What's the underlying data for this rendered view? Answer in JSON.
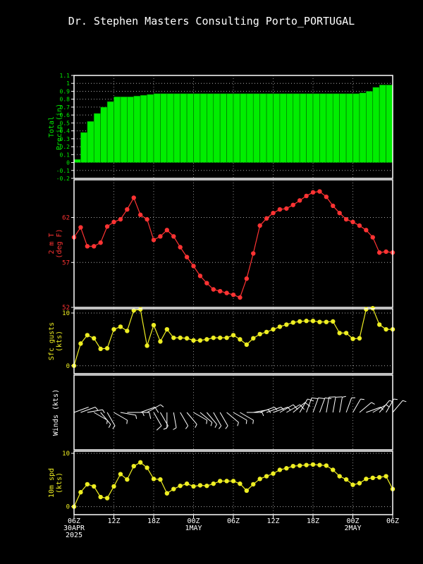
{
  "title": "Dr. Stephen Masters Consulting  Porto_PORTUGAL",
  "x_axis": {
    "ticks": [
      {
        "h": 0,
        "label": "06Z",
        "sub": [
          "30APR",
          "2025"
        ]
      },
      {
        "h": 6,
        "label": "12Z",
        "sub": []
      },
      {
        "h": 12,
        "label": "18Z",
        "sub": []
      },
      {
        "h": 18,
        "label": "00Z",
        "sub": [
          "1MAY"
        ]
      },
      {
        "h": 24,
        "label": "06Z",
        "sub": []
      },
      {
        "h": 30,
        "label": "12Z",
        "sub": []
      },
      {
        "h": 36,
        "label": "18Z",
        "sub": []
      },
      {
        "h": 42,
        "label": "00Z",
        "sub": [
          "2MAY"
        ]
      },
      {
        "h": 48,
        "label": "06Z",
        "sub": []
      }
    ]
  },
  "colors": {
    "precip": "#00ee00",
    "temp": "#ff3333",
    "gust": "#eeee22",
    "wind": "#ffffff",
    "spd": "#eeee22"
  },
  "chart_data": [
    {
      "type": "bar",
      "name": "precip",
      "ylabel": [
        "Total",
        "Precip (in)"
      ],
      "ylim": [
        -0.2,
        1.1
      ],
      "yticks": [
        -0.2,
        -0.1,
        0,
        0.1,
        0.2,
        0.3,
        0.4,
        0.5,
        0.6,
        0.7,
        0.8,
        0.9,
        1,
        1.1
      ],
      "ytick_labels": [
        "-0.2",
        "-0.1",
        "0",
        "0.1",
        "0.2",
        "0.3",
        "0.4",
        "0.5",
        "0.6",
        "0.7",
        "0.8",
        "0.9",
        "1",
        "1.1"
      ],
      "grid": true,
      "values": [
        0.0,
        0.04,
        0.38,
        0.52,
        0.62,
        0.7,
        0.77,
        0.83,
        0.83,
        0.83,
        0.84,
        0.85,
        0.86,
        0.87,
        0.87,
        0.87,
        0.87,
        0.87,
        0.87,
        0.87,
        0.87,
        0.87,
        0.87,
        0.87,
        0.87,
        0.87,
        0.87,
        0.87,
        0.87,
        0.87,
        0.87,
        0.87,
        0.87,
        0.87,
        0.87,
        0.87,
        0.87,
        0.87,
        0.87,
        0.87,
        0.87,
        0.87,
        0.87,
        0.87,
        0.88,
        0.9,
        0.95,
        0.98,
        0.98
      ]
    },
    {
      "type": "line",
      "name": "temp",
      "ylabel": [
        "2 m T",
        "(deg F)"
      ],
      "ylim": [
        52,
        66.2
      ],
      "yticks": [
        52,
        57,
        62
      ],
      "ytick_labels": [
        "52",
        "57",
        "62"
      ],
      "grid": true,
      "values": [
        59.8,
        60.9,
        58.8,
        58.8,
        59.2,
        61.0,
        61.5,
        61.8,
        62.9,
        64.2,
        62.3,
        61.8,
        59.5,
        59.9,
        60.6,
        59.9,
        58.7,
        57.6,
        56.6,
        55.5,
        54.7,
        54.0,
        53.8,
        53.6,
        53.4,
        53.1,
        55.2,
        58.0,
        61.1,
        61.9,
        62.5,
        62.9,
        63.0,
        63.4,
        63.9,
        64.4,
        64.8,
        64.9,
        64.3,
        63.3,
        62.5,
        61.8,
        61.5,
        61.1,
        60.6,
        59.8,
        58.1,
        58.2,
        58.1
      ]
    },
    {
      "type": "line",
      "name": "gusts",
      "ylabel": [
        "Sfc gusts",
        "(kts)"
      ],
      "ylim": [
        -1.5,
        10.8
      ],
      "yticks": [
        0,
        10
      ],
      "ytick_labels": [
        "0",
        "10"
      ],
      "grid": true,
      "values": [
        0.0,
        4.2,
        5.8,
        5.2,
        3.2,
        3.3,
        6.9,
        7.4,
        6.6,
        10.5,
        10.7,
        3.8,
        7.7,
        4.6,
        6.9,
        5.3,
        5.3,
        5.2,
        4.8,
        4.8,
        5.0,
        5.3,
        5.3,
        5.3,
        5.8,
        5.0,
        4.0,
        5.2,
        6.0,
        6.4,
        6.9,
        7.4,
        7.8,
        8.2,
        8.4,
        8.5,
        8.5,
        8.3,
        8.3,
        8.4,
        6.2,
        6.2,
        5.1,
        5.2,
        10.7,
        10.9,
        7.8,
        6.9,
        6.9
      ]
    },
    {
      "type": "wind_barbs",
      "name": "winds",
      "ylabel": [
        "Winds (kts)"
      ],
      "directions": [
        250,
        250,
        260,
        300,
        320,
        330,
        300,
        280,
        270,
        270,
        250,
        240,
        330,
        330,
        360,
        350,
        330,
        320,
        300,
        310,
        320,
        330,
        330,
        310,
        300,
        300,
        270,
        260,
        250,
        250,
        250,
        240,
        240,
        230,
        210,
        200,
        200,
        200,
        190,
        190,
        190,
        200,
        210,
        230,
        250,
        240,
        220,
        210,
        220
      ],
      "speeds": [
        0,
        3,
        5,
        5,
        3,
        3,
        6,
        7,
        6,
        9,
        9,
        5,
        8,
        4,
        6,
        5,
        5,
        5,
        4,
        4,
        5,
        5,
        5,
        5,
        5,
        5,
        4,
        5,
        6,
        7,
        7,
        8,
        8,
        8,
        9,
        9,
        9,
        8,
        8,
        8,
        6,
        6,
        5,
        5,
        6,
        6,
        6,
        6,
        6
      ]
    },
    {
      "type": "line",
      "name": "wind_speed",
      "ylabel": [
        "10m spd",
        "(kts)"
      ],
      "ylim": [
        -1.5,
        10.4
      ],
      "yticks": [
        0,
        10
      ],
      "ytick_labels": [
        "0",
        "10"
      ],
      "grid": true,
      "values": [
        0.0,
        2.7,
        4.2,
        3.8,
        1.8,
        1.6,
        3.8,
        6.1,
        5.1,
        7.6,
        8.3,
        7.3,
        5.2,
        5.1,
        2.5,
        3.3,
        3.9,
        4.3,
        3.8,
        4.0,
        3.9,
        4.3,
        4.8,
        4.8,
        4.8,
        4.3,
        3.0,
        4.2,
        5.2,
        5.7,
        6.2,
        6.9,
        7.2,
        7.6,
        7.7,
        7.8,
        7.9,
        7.8,
        7.7,
        6.9,
        5.7,
        5.1,
        4.1,
        4.4,
        5.2,
        5.4,
        5.5,
        5.7,
        3.3
      ]
    }
  ]
}
